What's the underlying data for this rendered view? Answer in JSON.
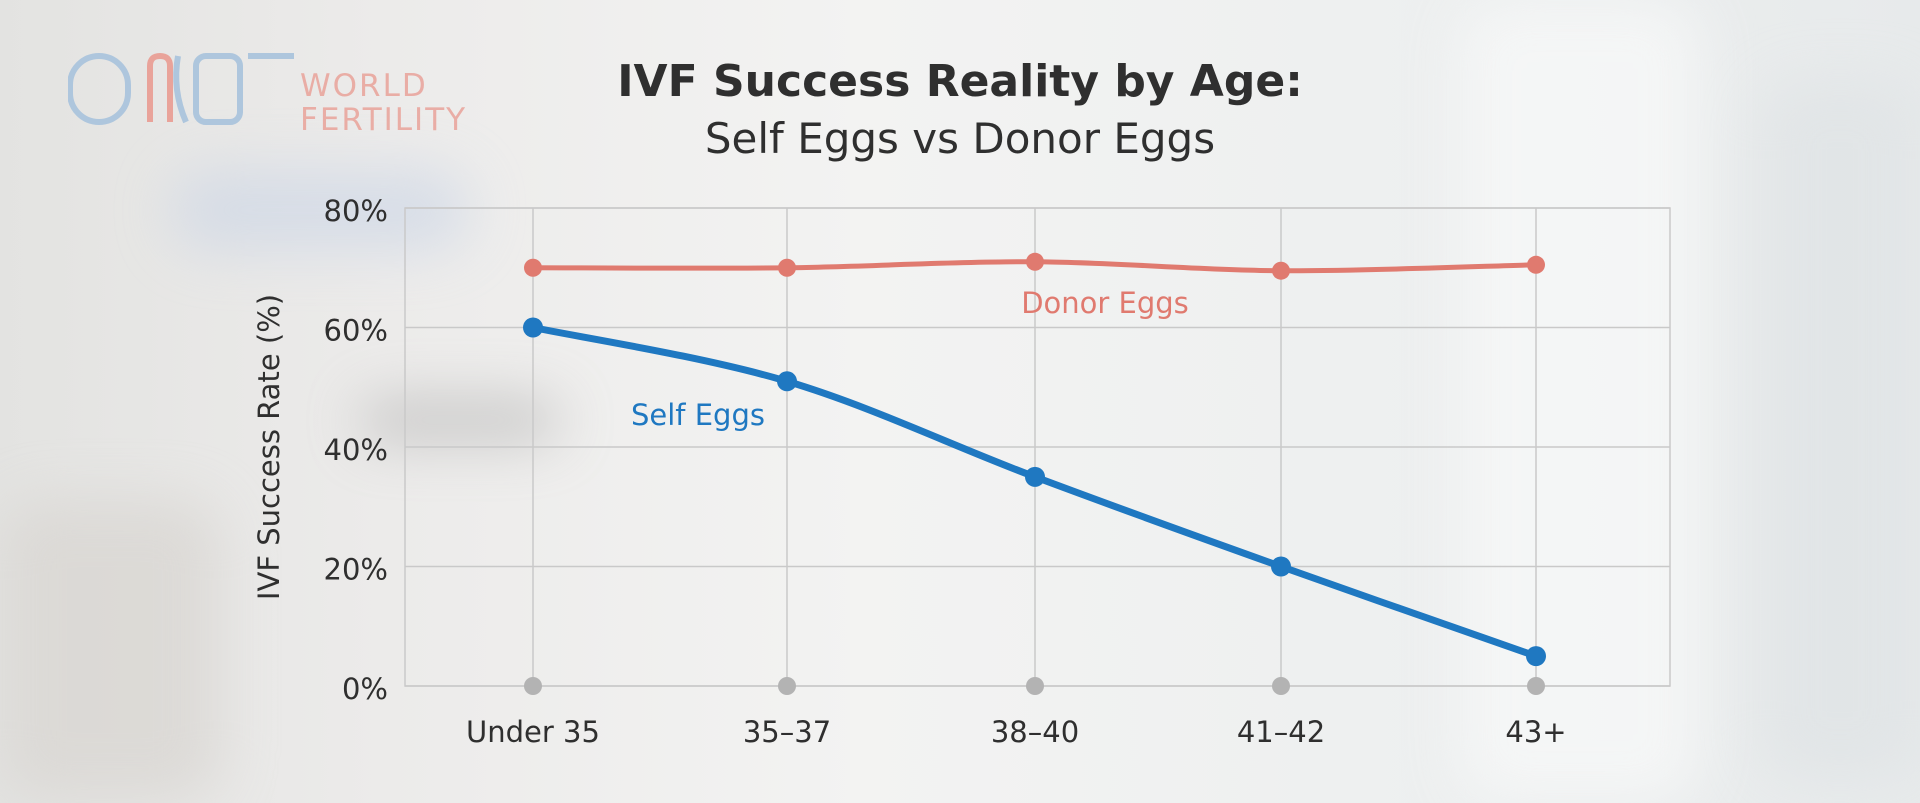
{
  "logo": {
    "mark": "ONE",
    "line1": "WORLD",
    "line2": "FERTILITY"
  },
  "title_line1": "IVF Success Reality by Age:",
  "title_line2": "Self Eggs vs Donor Eggs",
  "colors": {
    "self": "#1f78c1",
    "donor": "#e07a6f",
    "grid": "#c9c9c9",
    "baseline_dot": "#b3b3b3",
    "text": "#2f2f2f"
  },
  "chart_data": {
    "type": "line",
    "title": "IVF Success Reality by Age: Self Eggs vs Donor Eggs",
    "xlabel": "",
    "ylabel": "IVF Success Rate (%)",
    "categories": [
      "Under 35",
      "35–37",
      "38–40",
      "41–42",
      "43+"
    ],
    "ylim": [
      0,
      80
    ],
    "yticks": [
      0,
      20,
      40,
      60,
      80
    ],
    "ytick_labels": [
      "0%",
      "20%",
      "40%",
      "60%",
      "80%"
    ],
    "grid": true,
    "legend": "inline labels",
    "series": [
      {
        "name": "Donor Eggs",
        "values": [
          70,
          70,
          71,
          69.5,
          70.5
        ]
      },
      {
        "name": "Self Eggs",
        "values": [
          60,
          51,
          35,
          20,
          5
        ]
      }
    ]
  }
}
